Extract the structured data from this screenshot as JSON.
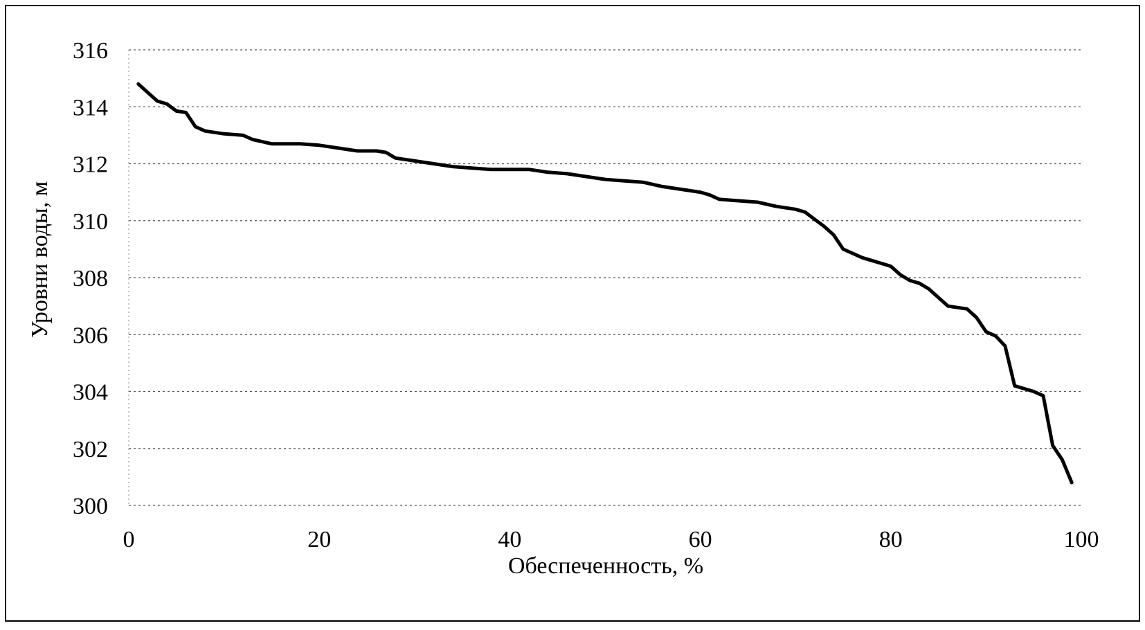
{
  "chart_data": {
    "type": "line",
    "x_label": "Обеспеченность, %",
    "y_label": "Уровни воды, м",
    "x": [
      1,
      2,
      3,
      4,
      5,
      6,
      7,
      8,
      10,
      12,
      13,
      15,
      18,
      20,
      22,
      24,
      26,
      27,
      28,
      30,
      32,
      34,
      36,
      38,
      40,
      42,
      44,
      46,
      48,
      50,
      52,
      54,
      56,
      58,
      60,
      61,
      62,
      64,
      66,
      68,
      70,
      71,
      72,
      73,
      74,
      75,
      76,
      77,
      78,
      79,
      80,
      81,
      82,
      83,
      84,
      85,
      86,
      87,
      88,
      89,
      90,
      91,
      92,
      93,
      94,
      95,
      96,
      97,
      98,
      99
    ],
    "values": [
      314.8,
      314.5,
      314.2,
      314.1,
      313.85,
      313.8,
      313.3,
      313.15,
      313.05,
      313.0,
      312.85,
      312.7,
      312.7,
      312.65,
      312.55,
      312.45,
      312.45,
      312.4,
      312.2,
      312.1,
      312.0,
      311.9,
      311.85,
      311.8,
      311.8,
      311.8,
      311.7,
      311.65,
      311.55,
      311.45,
      311.4,
      311.35,
      311.2,
      311.1,
      311.0,
      310.9,
      310.75,
      310.7,
      310.65,
      310.5,
      310.4,
      310.3,
      310.05,
      309.8,
      309.5,
      309.0,
      308.85,
      308.7,
      308.6,
      308.5,
      308.4,
      308.1,
      307.9,
      307.8,
      307.6,
      307.3,
      307.0,
      306.95,
      306.9,
      306.6,
      306.1,
      305.95,
      305.6,
      304.2,
      304.1,
      304.0,
      303.85,
      302.1,
      301.6,
      300.8
    ],
    "color": "#000000",
    "xlim": [
      0,
      100
    ],
    "xticks": [
      0,
      20,
      40,
      60,
      80,
      100
    ],
    "ylim": [
      300,
      316
    ],
    "yticks": [
      300,
      302,
      304,
      306,
      308,
      310,
      312,
      314,
      316
    ],
    "grid": true
  }
}
